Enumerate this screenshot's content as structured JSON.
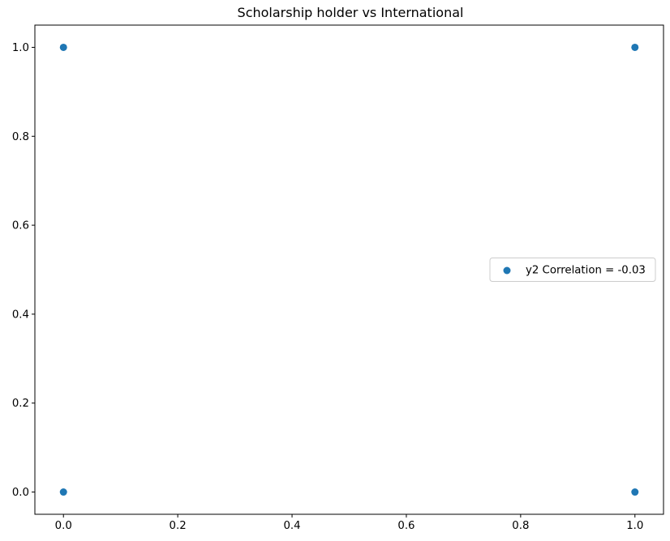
{
  "chart_data": {
    "type": "scatter",
    "title": "Scholarship holder vs International",
    "xlabel": "",
    "ylabel": "",
    "xlim": [
      -0.05,
      1.05
    ],
    "ylim": [
      -0.05,
      1.05
    ],
    "xticks": [
      0.0,
      0.2,
      0.4,
      0.6,
      0.8,
      1.0
    ],
    "yticks": [
      0.0,
      0.2,
      0.4,
      0.6,
      0.8,
      1.0
    ],
    "xtick_labels": [
      "0.0",
      "0.2",
      "0.4",
      "0.6",
      "0.8",
      "1.0"
    ],
    "ytick_labels": [
      "0.0",
      "0.2",
      "0.4",
      "0.6",
      "0.8",
      "1.0"
    ],
    "grid": false,
    "legend_placement": "center-right",
    "series": [
      {
        "name": "y2 Correlation = -0.03",
        "color": "#1f77b4",
        "points": [
          {
            "x": 0,
            "y": 0
          },
          {
            "x": 0,
            "y": 1
          },
          {
            "x": 1,
            "y": 0
          },
          {
            "x": 1,
            "y": 1
          }
        ]
      }
    ]
  }
}
